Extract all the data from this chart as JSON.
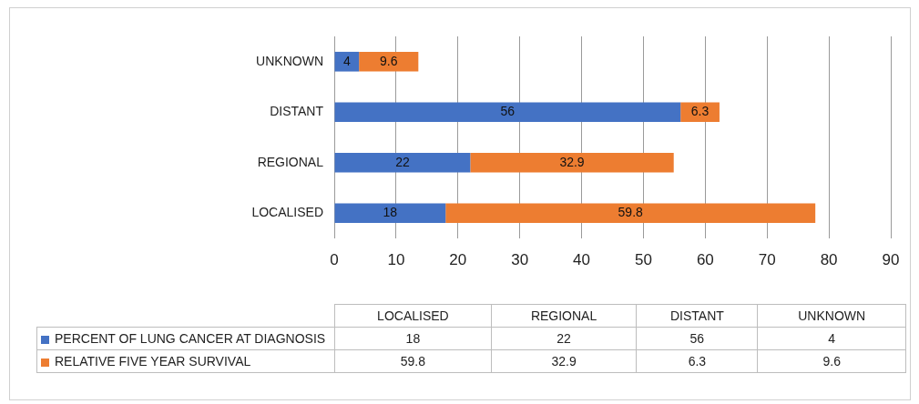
{
  "chart_data": {
    "type": "bar",
    "orientation": "horizontal",
    "stacked": true,
    "categories": [
      "UNKNOWN",
      "DISTANT",
      "REGIONAL",
      "LOCALISED"
    ],
    "series": [
      {
        "name": "PERCENT OF LUNG CANCER AT DIAGNOSIS",
        "color": "#4472c4",
        "values": [
          4,
          56,
          22,
          18
        ]
      },
      {
        "name": "RELATIVE FIVE YEAR SURVIVAL",
        "color": "#ed7d31",
        "values": [
          9.6,
          6.3,
          32.9,
          59.8
        ]
      }
    ],
    "xlim": [
      0,
      90
    ],
    "xticks": [
      0,
      10,
      20,
      30,
      40,
      50,
      60,
      70,
      80,
      90
    ],
    "grid": "x",
    "legend": "bottom",
    "data_labels": true,
    "annotations": [
      "18",
      "22",
      "56",
      "4",
      "59.8",
      "32.9",
      "6.3",
      "9.6"
    ]
  }
}
